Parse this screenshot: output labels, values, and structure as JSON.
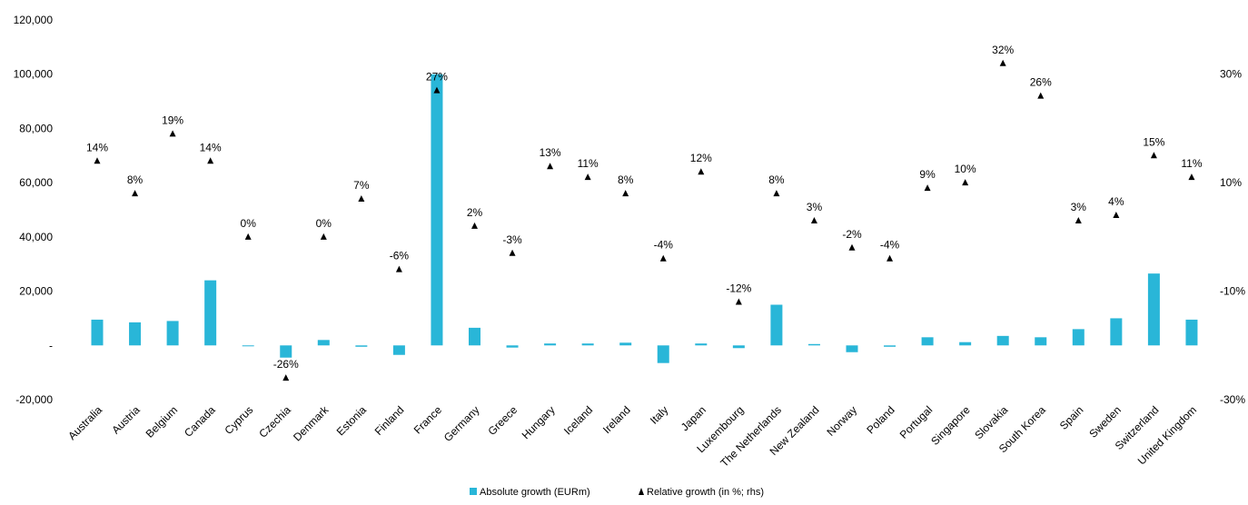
{
  "chart_data": {
    "type": "bar",
    "categories": [
      "Australia",
      "Austria",
      "Belgium",
      "Canada",
      "Cyprus",
      "Czechia",
      "Denmark",
      "Estonia",
      "Finland",
      "France",
      "Germany",
      "Greece",
      "Hungary",
      "Iceland",
      "Ireland",
      "Italy",
      "Japan",
      "Luxembourg",
      "The Netherlands",
      "New Zealand",
      "Norway",
      "Poland",
      "Portugal",
      "Singapore",
      "Slovakia",
      "South Korea",
      "Spain",
      "Sweden",
      "Switzerland",
      "United Kingdom"
    ],
    "series": [
      {
        "name": "Absolute growth (EURm)",
        "type": "bar",
        "axis": "left",
        "color": "#29b6d8",
        "values": [
          9500,
          8500,
          9000,
          24000,
          0,
          -4500,
          2000,
          -500,
          -3500,
          100000,
          6500,
          -800,
          700,
          700,
          1000,
          -6500,
          700,
          -1000,
          15000,
          500,
          -2500,
          -500,
          3000,
          1200,
          3500,
          3000,
          6000,
          10000,
          26500,
          9500
        ]
      },
      {
        "name": "Relative growth (in %; rhs)",
        "type": "scatter",
        "axis": "right",
        "color": "#000000",
        "values": [
          14,
          8,
          19,
          14,
          0,
          -26,
          0,
          7,
          -6,
          27,
          2,
          -3,
          13,
          11,
          8,
          -4,
          12,
          -12,
          8,
          3,
          -2,
          -4,
          9,
          10,
          32,
          26,
          3,
          4,
          15,
          11
        ],
        "labels": [
          "14%",
          "8%",
          "19%",
          "14%",
          "0%",
          "-26%",
          "0%",
          "7%",
          "-6%",
          "27%",
          "2%",
          "-3%",
          "13%",
          "11%",
          "8%",
          "-4%",
          "12%",
          "-12%",
          "8%",
          "3%",
          "-2%",
          "-4%",
          "9%",
          "10%",
          "32%",
          "26%",
          "3%",
          "4%",
          "15%",
          "11%"
        ]
      }
    ],
    "left_axis": {
      "ylim": [
        -20000,
        120000
      ],
      "ticks": [
        -20000,
        0,
        20000,
        40000,
        60000,
        80000,
        100000,
        120000
      ],
      "tick_labels": [
        "-20,000",
        "-",
        "20,000",
        "40,000",
        "60,000",
        "80,000",
        "100,000",
        "120,000"
      ]
    },
    "right_axis": {
      "ylim": [
        -30,
        40
      ],
      "ticks": [
        -30,
        -10,
        10,
        30
      ],
      "tick_labels": [
        "-30%",
        "-10%",
        "10%",
        "30%"
      ]
    },
    "legend": {
      "position": "bottom-center",
      "entries": [
        "Absolute growth (EURm)",
        "Relative growth (in %; rhs)"
      ]
    },
    "grid": false,
    "title": "",
    "xlabel": "",
    "ylabel": ""
  }
}
